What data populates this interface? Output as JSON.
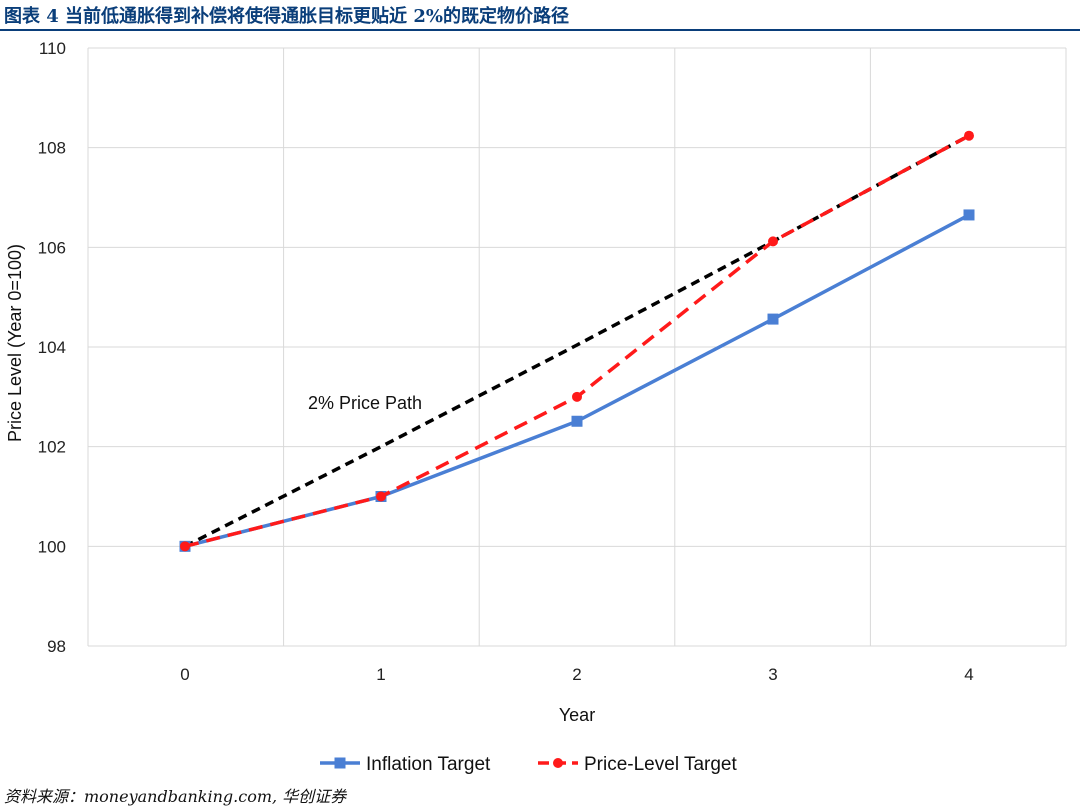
{
  "header": {
    "title": "图表 4 当前低通胀得到补偿将使得通胀目标更贴近 2%的既定物价路径"
  },
  "source": "资料来源：moneyandbanking.com, 华创证券",
  "chart_data": {
    "type": "line",
    "xlabel": "Year",
    "ylabel": "Price Level (Year 0=100)",
    "x": [
      0,
      1,
      2,
      3,
      4
    ],
    "ylim": [
      98,
      110
    ],
    "yticks": [
      98,
      100,
      102,
      104,
      106,
      108,
      110
    ],
    "grid": true,
    "legend_position": "bottom",
    "annotation": "2% Price Path",
    "series": [
      {
        "name": "Inflation Target",
        "values": [
          100,
          101.0,
          102.51,
          104.56,
          106.65
        ],
        "color": "#4a7fd4",
        "style": "solid",
        "marker": "square"
      },
      {
        "name": "Price-Level Target",
        "values": [
          100,
          101.0,
          103.0,
          106.12,
          108.24
        ],
        "color": "#ff1a1a",
        "style": "dashed",
        "marker": "circle"
      },
      {
        "name": "",
        "values": [
          100,
          102.0,
          104.04,
          106.12,
          108.24
        ],
        "color": "#000000",
        "style": "dashed",
        "marker": "none"
      }
    ]
  }
}
